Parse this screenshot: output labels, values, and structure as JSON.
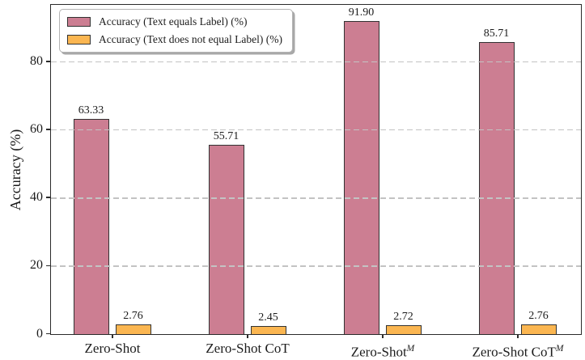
{
  "chart_data": {
    "type": "bar",
    "title": "",
    "xlabel": "",
    "ylabel": "Accuracy (%)",
    "categories": [
      {
        "text": "Zero-Shot",
        "sup": ""
      },
      {
        "text": "Zero-Shot CoT",
        "sup": ""
      },
      {
        "text": "Zero-Shot",
        "sup": "M"
      },
      {
        "text": "Zero-Shot CoT",
        "sup": "M"
      }
    ],
    "series": [
      {
        "name": "Accuracy (Text equals Label) (%)",
        "color": "#cc7e92",
        "values": [
          63.33,
          55.71,
          91.9,
          85.71
        ],
        "value_labels": [
          "63.33",
          "55.71",
          "91.90",
          "85.71"
        ]
      },
      {
        "name": "Accuracy (Text does not equal Label) (%)",
        "color": "#fbb651",
        "values": [
          2.76,
          2.45,
          2.72,
          2.76
        ],
        "value_labels": [
          "2.76",
          "2.45",
          "2.72",
          "2.76"
        ]
      }
    ],
    "yticks": [
      "0",
      "20",
      "40",
      "60",
      "80"
    ],
    "ytick_values": [
      0,
      20,
      40,
      60,
      80
    ],
    "ylim": [
      0,
      96.5
    ],
    "grid": "horizontal-dashed-over-bars",
    "legend_position": "upper-left"
  },
  "style": {
    "bar_edge": "#323232",
    "spine": "#2b2b2b",
    "grid_color": "#c3c3c3",
    "text_color": "#1c1c1c",
    "legend_border": "#b3b3b3",
    "background": "#ffffff"
  }
}
